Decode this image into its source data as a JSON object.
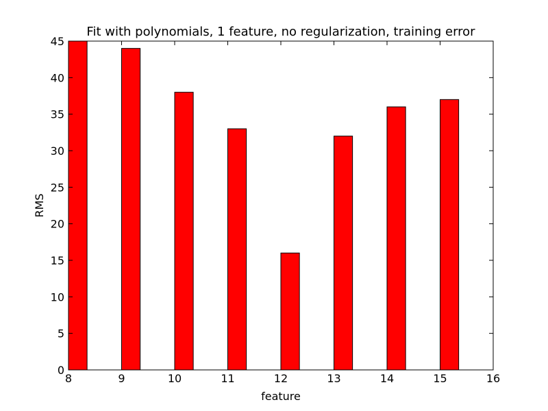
{
  "chart_data": {
    "type": "bar",
    "title": "Fit with polynomials, 1 feature, no regularization, training error",
    "xlabel": "feature",
    "ylabel": "RMS",
    "x": [
      8,
      9,
      10,
      11,
      12,
      13,
      14,
      15
    ],
    "values": [
      45,
      44,
      38,
      33,
      16,
      32,
      36,
      37
    ],
    "bar_width": 0.35,
    "xlim": [
      8,
      16
    ],
    "ylim": [
      0,
      45
    ],
    "xticks": [
      8,
      9,
      10,
      11,
      12,
      13,
      14,
      15,
      16
    ],
    "yticks": [
      0,
      5,
      10,
      15,
      20,
      25,
      30,
      35,
      40,
      45
    ],
    "grid": false,
    "legend": "none",
    "colors": {
      "bar_fill": "#ff0000",
      "bar_edge": "#000000",
      "axes": "#000000"
    }
  }
}
